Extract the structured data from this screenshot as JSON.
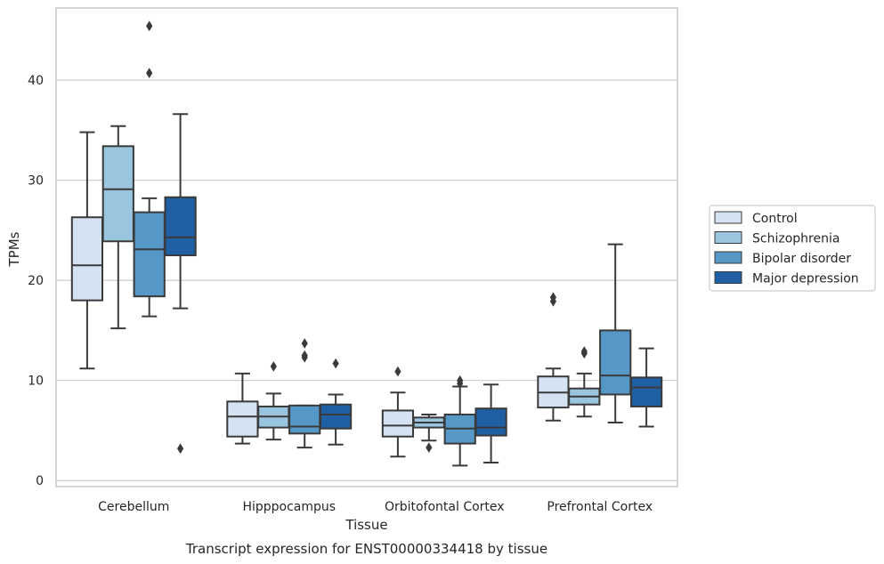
{
  "chart_data": {
    "type": "box",
    "title": "Transcript expression for ENST00000334418 by tissue",
    "xlabel": "Tissue",
    "ylabel": "TPMs",
    "ylim": [
      -0.6,
      47.2
    ],
    "yticks": [
      0,
      10,
      20,
      30,
      40
    ],
    "grid": "horizontal",
    "legend_position": "right",
    "categories": [
      "Cerebellum",
      "Hipppocampus",
      "Orbitofontal Cortex",
      "Prefrontal Cortex"
    ],
    "series": [
      {
        "name": "Control",
        "color": "#d4e2f1",
        "boxes": [
          {
            "whislo": 11.2,
            "q1": 18.0,
            "med": 21.5,
            "q3": 26.3,
            "whishi": 34.8,
            "fliers": []
          },
          {
            "whislo": 3.7,
            "q1": 4.4,
            "med": 6.4,
            "q3": 7.9,
            "whishi": 10.7,
            "fliers": []
          },
          {
            "whislo": 2.4,
            "q1": 4.4,
            "med": 5.5,
            "q3": 7.0,
            "whishi": 8.8,
            "fliers": [
              10.9
            ]
          },
          {
            "whislo": 6.0,
            "q1": 7.3,
            "med": 8.8,
            "q3": 10.4,
            "whishi": 11.2,
            "fliers": [
              17.9,
              18.3
            ]
          }
        ]
      },
      {
        "name": "Schizophrenia",
        "color": "#9ac5df",
        "boxes": [
          {
            "whislo": 15.2,
            "q1": 23.9,
            "med": 29.1,
            "q3": 33.4,
            "whishi": 35.4,
            "fliers": []
          },
          {
            "whislo": 4.1,
            "q1": 5.3,
            "med": 6.4,
            "q3": 7.4,
            "whishi": 8.7,
            "fliers": [
              11.4
            ]
          },
          {
            "whislo": 4.0,
            "q1": 5.3,
            "med": 5.8,
            "q3": 6.3,
            "whishi": 6.6,
            "fliers": [
              3.3
            ]
          },
          {
            "whislo": 6.4,
            "q1": 7.6,
            "med": 8.4,
            "q3": 9.2,
            "whishi": 10.7,
            "fliers": [
              12.7,
              12.9
            ]
          }
        ]
      },
      {
        "name": "Bipolar disorder",
        "color": "#5597c6",
        "boxes": [
          {
            "whislo": 16.4,
            "q1": 18.4,
            "med": 23.1,
            "q3": 26.8,
            "whishi": 28.2,
            "fliers": [
              40.7,
              45.4
            ]
          },
          {
            "whislo": 3.3,
            "q1": 4.7,
            "med": 5.4,
            "q3": 7.5,
            "whishi": 7.5,
            "fliers": [
              12.3,
              12.5,
              13.7
            ]
          },
          {
            "whislo": 1.5,
            "q1": 3.7,
            "med": 5.2,
            "q3": 6.6,
            "whishi": 9.4,
            "fliers": [
              9.7,
              10.0
            ]
          },
          {
            "whislo": 5.8,
            "q1": 8.6,
            "med": 10.5,
            "q3": 15.0,
            "whishi": 23.6,
            "fliers": []
          }
        ]
      },
      {
        "name": "Major depression",
        "color": "#1f5fa3",
        "boxes": [
          {
            "whislo": 17.2,
            "q1": 22.5,
            "med": 24.3,
            "q3": 28.3,
            "whishi": 36.6,
            "fliers": [
              3.2
            ]
          },
          {
            "whislo": 3.6,
            "q1": 5.2,
            "med": 6.6,
            "q3": 7.6,
            "whishi": 8.6,
            "fliers": [
              11.7
            ]
          },
          {
            "whislo": 1.8,
            "q1": 4.5,
            "med": 5.3,
            "q3": 7.2,
            "whishi": 9.6,
            "fliers": []
          },
          {
            "whislo": 5.4,
            "q1": 7.4,
            "med": 9.3,
            "q3": 10.3,
            "whishi": 13.2,
            "fliers": []
          }
        ]
      }
    ]
  }
}
